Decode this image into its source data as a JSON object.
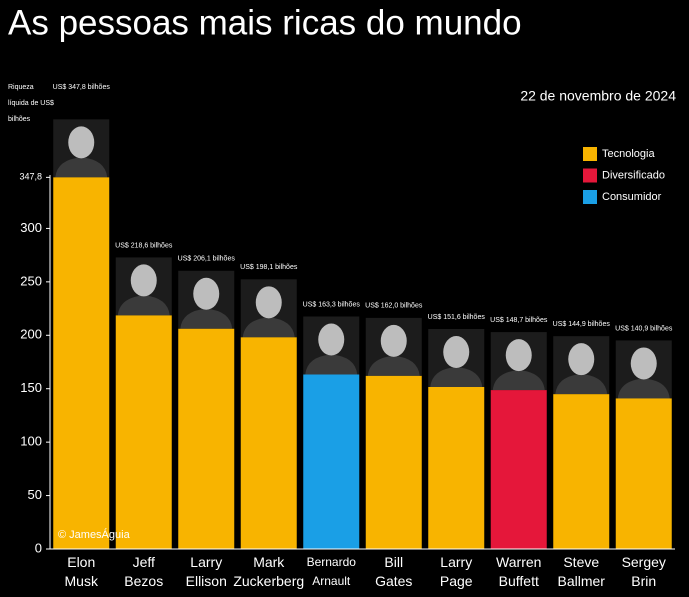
{
  "chart_data": {
    "type": "bar",
    "title": "As pessoas mais ricas do mundo",
    "subtitle": "22 de novembro de 2024",
    "ylabel": [
      "Riqueza",
      "líquida de US$",
      "bilhões"
    ],
    "annotation": "© JamesÁguia",
    "categories": [
      "Elon Musk",
      "Jeff Bezos",
      "Larry Ellison",
      "Mark Zuckerberg",
      "Bernardo Arnault",
      "Bill Gates",
      "Larry Page",
      "Warren Buffett",
      "Steve Ballmer",
      "Sergey Brin"
    ],
    "values": [
      347.8,
      218.6,
      206.1,
      198.1,
      163.3,
      162.0,
      151.6,
      148.7,
      144.9,
      140.9
    ],
    "value_labels": [
      "US$ 347,8 bilhões",
      "US$ 218,6 bilhões",
      "US$ 206,1 bilhões",
      "US$ 198,1 bilhões",
      "US$ 163,3 bilhões",
      "US$ 162,0 bilhões",
      "US$ 151,6 bilhões",
      "US$ 148,7 bilhões",
      "US$ 144,9 bilhões",
      "US$ 140,9 bilhões"
    ],
    "colors": [
      "#f8b400",
      "#f8b400",
      "#f8b400",
      "#f8b400",
      "#1a9fe6",
      "#f8b400",
      "#f8b400",
      "#e5173a",
      "#f8b400",
      "#f8b400"
    ],
    "legend": [
      {
        "name": "Tecnologia",
        "color": "#f8b400"
      },
      {
        "name": "Diversificado",
        "color": "#e5173a"
      },
      {
        "name": "Consumidor",
        "color": "#1a9fe6"
      }
    ],
    "ylim": [
      0,
      350
    ],
    "yticks": [
      0,
      50,
      100,
      150,
      200,
      250,
      300,
      {
        "value": 347.8,
        "label": "347,8"
      }
    ]
  }
}
